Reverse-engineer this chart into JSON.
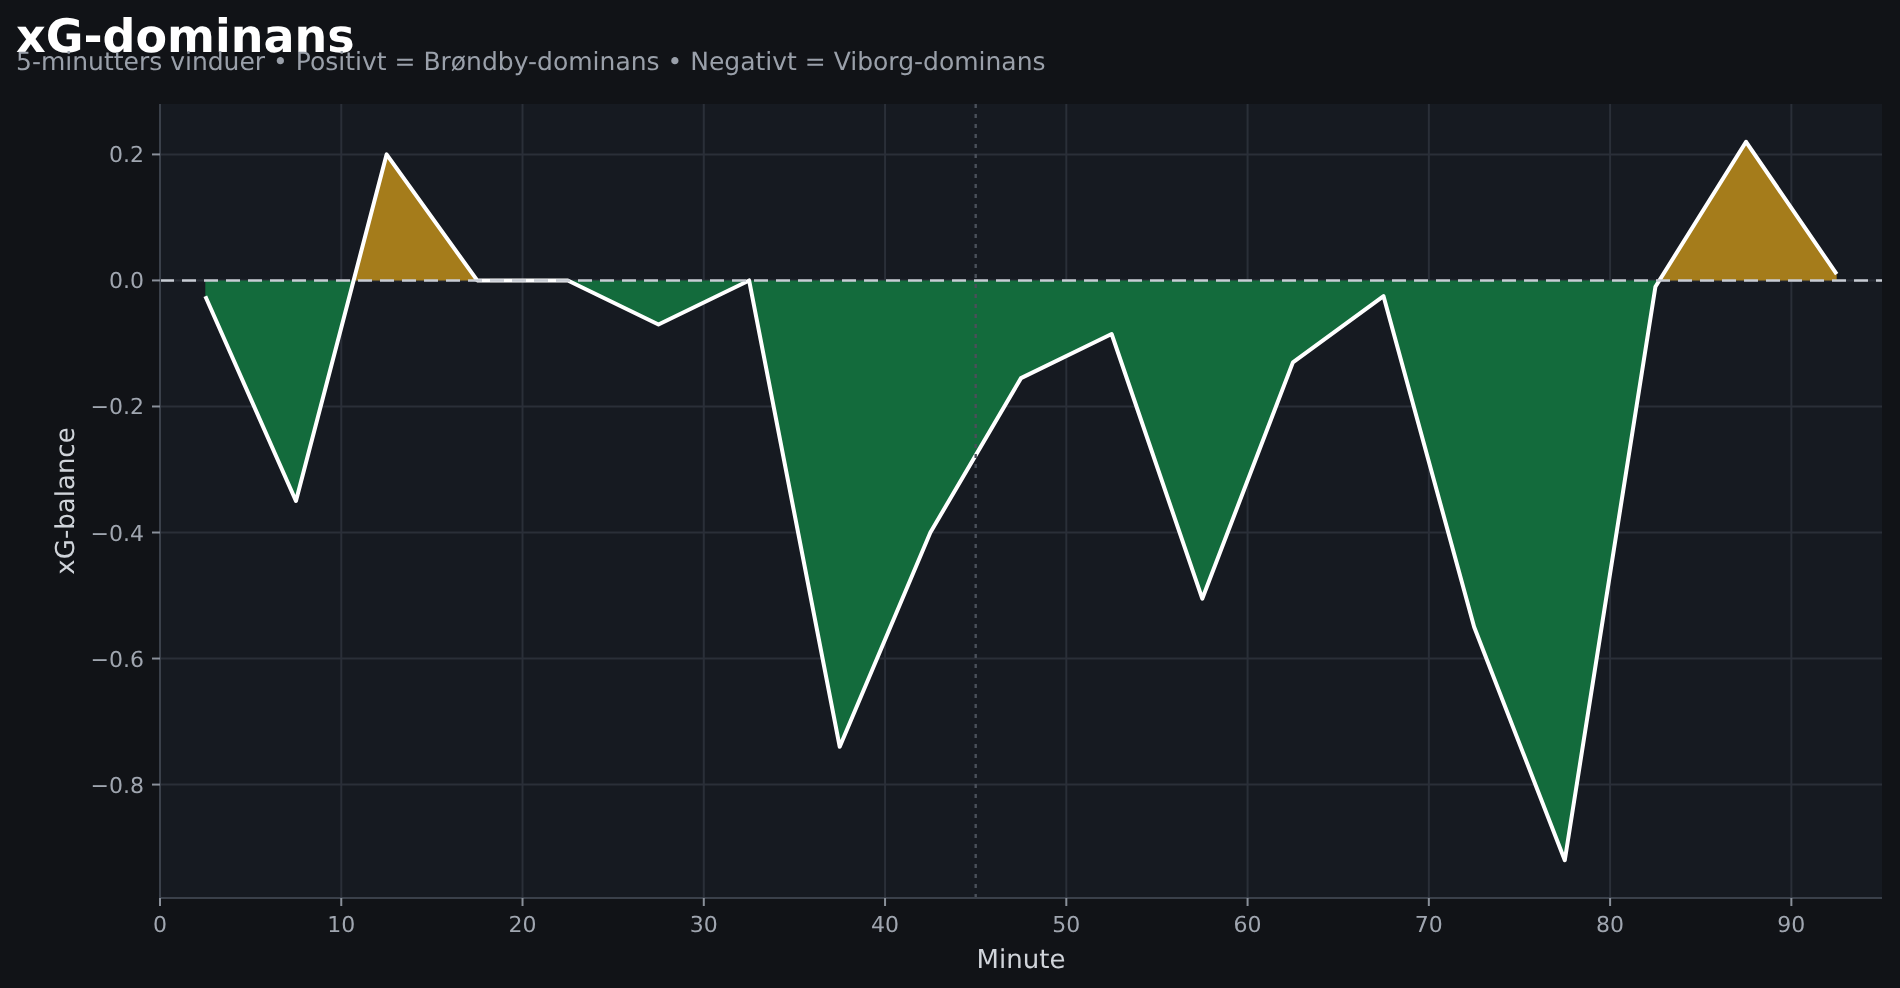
{
  "chart_data": {
    "type": "area",
    "title": "xG-dominans",
    "subtitle": "5-minutters vinduer • Positivt = Brøndby-dominans • Negativt = Viborg-dominans",
    "xlabel": "Minute",
    "ylabel": "xG-balance",
    "x": [
      2.5,
      7.5,
      12.5,
      17.5,
      22.5,
      27.5,
      32.5,
      37.5,
      42.5,
      47.5,
      52.5,
      57.5,
      62.5,
      67.5,
      72.5,
      77.5,
      82.5,
      87.5,
      92.5
    ],
    "series": [
      {
        "color": "#ffffff",
        "colors": [
          "#136b3c",
          "#136b3c",
          "#a57c1b",
          "#136b3c",
          "#136b3c",
          "#136b3c",
          "#136b3c",
          "#136b3c",
          "#136b3c",
          "#136b3c",
          "#136b3c",
          "#136b3c",
          "#136b3c",
          "#136b3c",
          "#136b3c",
          "#136b3c",
          "#136b3c",
          "#a57c1b",
          "#a57c1b"
        ],
        "values": [
          -0.025,
          -0.35,
          0.2,
          0,
          0,
          -0.07,
          0,
          -0.74,
          -0.4,
          -0.155,
          -0.085,
          -0.505,
          -0.13,
          -0.025,
          -0.55,
          -0.92,
          -0.01,
          0.22,
          0.01
        ]
      }
    ],
    "xlim": [
      0,
      95
    ],
    "xticks": [
      0,
      10,
      20,
      30,
      40,
      50,
      60,
      70,
      80,
      90
    ],
    "ylim": [
      -0.98,
      0.28
    ],
    "yticks": [
      {
        "value": -0.8,
        "label": "−0.8"
      },
      {
        "value": -0.6,
        "label": "−0.6"
      },
      {
        "value": -0.4,
        "label": "−0.4"
      },
      {
        "value": -0.2,
        "label": "−0.2"
      },
      {
        "value": 0,
        "label": "0.0"
      },
      {
        "value": 0.2,
        "label": "0.2"
      }
    ],
    "grid": true,
    "ref_lines": [
      {
        "axis": "y",
        "value": 0,
        "color": "#c8ccd4",
        "line_style": "dashed"
      },
      {
        "axis": "x",
        "value": 45,
        "color": "#4a505a",
        "line_style": "dotted"
      }
    ]
  }
}
